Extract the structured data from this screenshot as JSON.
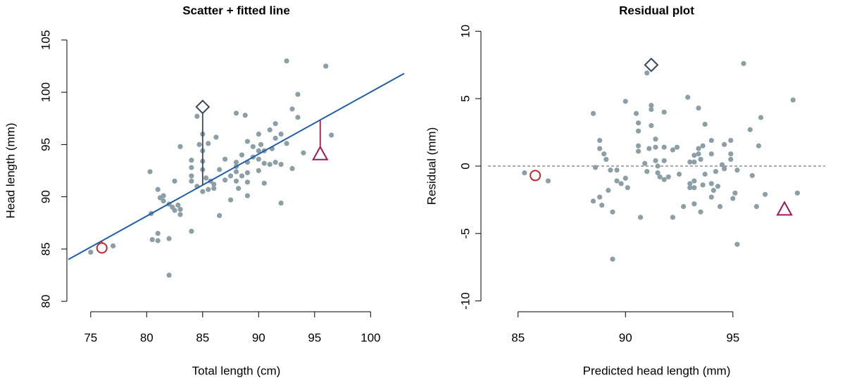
{
  "chart_data": [
    {
      "type": "scatter",
      "title": "Scatter + fitted line",
      "x_label": "Total length (cm)",
      "y_label": "Head length (mm)",
      "xlim": [
        73,
        103
      ],
      "ylim": [
        79,
        106
      ],
      "xticks": [
        75,
        80,
        85,
        90,
        95,
        100
      ],
      "yticks": [
        80,
        85,
        90,
        95,
        100,
        105
      ],
      "points": {
        "color": "#8c9ea6",
        "x": [
          75,
          77,
          80.3,
          80.4,
          80.5,
          81,
          81,
          81,
          81.2,
          81.5,
          81.5,
          82,
          82,
          82,
          82.3,
          82.5,
          82.5,
          82.8,
          83,
          83,
          83,
          84,
          84,
          84,
          84,
          84,
          84.5,
          84.5,
          84.7,
          85,
          85,
          85,
          85,
          85,
          85.3,
          85.5,
          85.5,
          85.7,
          86,
          86,
          86.2,
          86.5,
          86.5,
          87,
          87,
          87.5,
          87.5,
          88,
          88,
          88,
          88,
          88.2,
          88.5,
          88.5,
          88.8,
          89,
          89,
          89,
          89,
          89,
          89.5,
          89.5,
          90,
          90,
          90,
          90,
          90.5,
          90.5,
          90.5,
          91,
          91,
          91.2,
          91.5,
          91.5,
          91.5,
          92,
          92,
          92,
          92.5,
          92.5,
          93,
          93,
          93.5,
          93.5,
          94,
          96,
          96.5,
          88,
          90.2
        ],
        "y": [
          84.7,
          85.3,
          92.4,
          88.4,
          85.9,
          90.7,
          86.5,
          85.8,
          89.9,
          89.6,
          90.1,
          86,
          89.3,
          82.5,
          89,
          91.5,
          88.7,
          89.2,
          94.8,
          88.8,
          88.3,
          86.7,
          93.5,
          92.8,
          92,
          91.5,
          97.7,
          91,
          95,
          96,
          94.4,
          93.4,
          92.6,
          90.5,
          91.8,
          90.7,
          95.1,
          91.5,
          91.2,
          90.8,
          95.7,
          88.2,
          92.6,
          93.6,
          91.6,
          89.7,
          92,
          98,
          93.3,
          92.4,
          91.5,
          90.8,
          94,
          92,
          97.8,
          93.3,
          95.3,
          92.3,
          90.1,
          91.4,
          94.8,
          93.8,
          96,
          93.6,
          92.5,
          94.4,
          94.4,
          91.3,
          93.2,
          96.4,
          93.1,
          94.6,
          97,
          95.6,
          93.3,
          96,
          89.4,
          93.1,
          103,
          95.1,
          98.4,
          92.7,
          97.6,
          99.8,
          94.2,
          102.5,
          95.9,
          92.9,
          95
        ]
      },
      "fit_line": {
        "color": "#1f5fa8",
        "x": [
          73,
          103
        ],
        "y": [
          84.0,
          101.8
        ]
      },
      "highlights": [
        {
          "marker": "circle",
          "color": "#c0282d",
          "x": 76,
          "y": 85.1,
          "fitted": 85.8
        },
        {
          "marker": "diamond",
          "color": "#3a4a5a",
          "x": 85,
          "y": 98.6,
          "fitted": 91.1
        },
        {
          "marker": "triangle",
          "color": "#a0185a",
          "x": 95.5,
          "y": 94.1,
          "fitted": 97.3
        }
      ]
    },
    {
      "type": "scatter",
      "title": "Residual plot",
      "x_label": "Predicted head length (mm)",
      "y_label": "Residual (mm)",
      "xlim": [
        83.6,
        99.3
      ],
      "ylim": [
        -10.8,
        10.8
      ],
      "xticks": [
        85,
        90,
        95
      ],
      "yticks": [
        -10,
        -5,
        0,
        5,
        10
      ],
      "reference_line": {
        "y": 0,
        "style": "dashed",
        "color": "#555555"
      },
      "points": {
        "color": "#8c9ea6",
        "x": [
          85.3,
          86.4,
          88.5,
          88.5,
          88.6,
          88.8,
          88.8,
          88.8,
          88.9,
          89,
          89.1,
          89.2,
          89.3,
          89.4,
          89.4,
          89.6,
          89.6,
          89.8,
          90,
          90,
          90.1,
          90.5,
          90.6,
          90.6,
          90.6,
          90.6,
          90.7,
          90.9,
          91,
          91,
          91.1,
          91.2,
          91.2,
          91.2,
          91.4,
          91.4,
          91.4,
          91.5,
          91.5,
          91.6,
          91.8,
          91.8,
          91.8,
          91.8,
          92,
          92.2,
          92.2,
          92.4,
          92.5,
          92.7,
          92.9,
          93,
          93,
          93,
          93.2,
          93.2,
          93.2,
          93.2,
          93.2,
          93.4,
          93.4,
          93.4,
          93.5,
          93.5,
          93.6,
          93.6,
          93.7,
          93.7,
          94,
          94,
          94,
          94,
          94.1,
          94.2,
          94.3,
          94.4,
          94.5,
          94.6,
          94.6,
          94.9,
          94.9,
          94.9,
          95,
          95.1,
          95.2,
          95.2,
          95.5,
          95.8,
          95.9,
          96.1,
          96.2,
          96.3,
          96.5,
          97.8,
          98
        ],
        "y": [
          -0.5,
          -1.1,
          3.9,
          -2.6,
          -0.1,
          1.9,
          1.3,
          -2.3,
          -2.9,
          0.9,
          0.5,
          -1.8,
          -0.3,
          -6.9,
          -3.4,
          -0.3,
          -1.1,
          -1.3,
          4.8,
          -0.9,
          -1.6,
          3.9,
          3.2,
          2.6,
          1.5,
          1.1,
          -3.8,
          0.2,
          6.9,
          -0.4,
          1.3,
          4.5,
          4.2,
          3.0,
          2.0,
          1.4,
          0.4,
          0.0,
          -0.5,
          -0.8,
          4.0,
          1.4,
          0.4,
          -1.0,
          -0.8,
          1.2,
          -3.8,
          1.4,
          -0.6,
          -3.0,
          5.1,
          0.3,
          -1.3,
          -1.6,
          0.8,
          0.3,
          -1.1,
          -1.6,
          -2.8,
          4.3,
          1.3,
          0.9,
          0.5,
          -3.4,
          1.5,
          -1.4,
          3.1,
          -0.6,
          1.9,
          0.9,
          -1.3,
          -2.3,
          -1.8,
          -0.4,
          -1.5,
          -3.0,
          0.1,
          1.6,
          -0.2,
          1.9,
          0.9,
          0.5,
          -2.4,
          -2.0,
          -5.8,
          -0.3,
          7.6,
          2.7,
          -0.7,
          -3.0,
          1.5,
          3.6,
          -2.1,
          4.9,
          -2.0
        ]
      },
      "highlights": [
        {
          "marker": "circle",
          "color": "#c0282d",
          "x": 85.8,
          "y": -0.7
        },
        {
          "marker": "diamond",
          "color": "#3a4a5a",
          "x": 91.2,
          "y": 7.5
        },
        {
          "marker": "triangle",
          "color": "#a0185a",
          "x": 97.4,
          "y": -3.2
        }
      ]
    }
  ]
}
